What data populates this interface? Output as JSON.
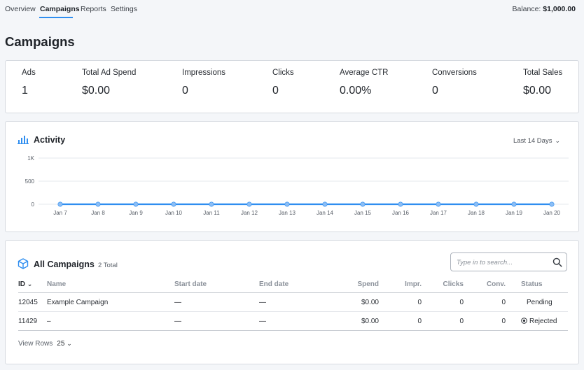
{
  "nav": {
    "tabs": [
      {
        "label": "Overview"
      },
      {
        "label": "Campaigns"
      },
      {
        "label": "Reports"
      },
      {
        "label": "Settings"
      }
    ],
    "balance_label": "Balance:",
    "balance_value": "$1,000.00"
  },
  "page_title": "Campaigns",
  "stats": [
    {
      "label": "Ads",
      "value": "1"
    },
    {
      "label": "Total Ad Spend",
      "value": "$0.00"
    },
    {
      "label": "Impressions",
      "value": "0"
    },
    {
      "label": "Clicks",
      "value": "0"
    },
    {
      "label": "Average CTR",
      "value": "0.00%"
    },
    {
      "label": "Conversions",
      "value": "0"
    },
    {
      "label": "Total Sales",
      "value": "$0.00"
    }
  ],
  "activity": {
    "title": "Activity",
    "range_label": "Last 14 Days",
    "icon": "bar-chart-icon"
  },
  "chart_data": {
    "type": "line",
    "x": [
      "Jan 7",
      "Jan 8",
      "Jan 9",
      "Jan 10",
      "Jan 11",
      "Jan 12",
      "Jan 13",
      "Jan 14",
      "Jan 15",
      "Jan 16",
      "Jan 17",
      "Jan 18",
      "Jan 19",
      "Jan 20"
    ],
    "series": [
      {
        "values": [
          0,
          0,
          0,
          0,
          0,
          0,
          0,
          0,
          0,
          0,
          0,
          0,
          0,
          0
        ],
        "color": "#2f8ef0"
      }
    ],
    "yticks": [
      "1K",
      "500",
      "0"
    ],
    "ytick_values": [
      1000,
      500,
      0
    ],
    "ylim": [
      0,
      1000
    ],
    "grid": true,
    "legend": false
  },
  "campaigns": {
    "title": "All Campaigns",
    "count_label": "2 Total",
    "icon": "box-icon",
    "search_placeholder": "Type in to search...",
    "columns": {
      "id": "ID",
      "name": "Name",
      "start": "Start date",
      "end": "End date",
      "spend": "Spend",
      "impr": "Impr.",
      "clicks": "Clicks",
      "conv": "Conv.",
      "status": "Status"
    },
    "rows": [
      {
        "id": "12045",
        "name": "Example Campaign",
        "start": "—",
        "end": "—",
        "spend": "$0.00",
        "impr": "0",
        "clicks": "0",
        "conv": "0",
        "status": "Pending"
      },
      {
        "id": "11429",
        "name": "–",
        "start": "—",
        "end": "—",
        "spend": "$0.00",
        "impr": "0",
        "clicks": "0",
        "conv": "0",
        "status": "Rejected"
      }
    ],
    "view_rows_label": "View Rows",
    "view_rows_value": "25"
  },
  "colors": {
    "accent": "#2f8ef0",
    "line": "#2f8ef0",
    "point": "#8cbef5"
  }
}
